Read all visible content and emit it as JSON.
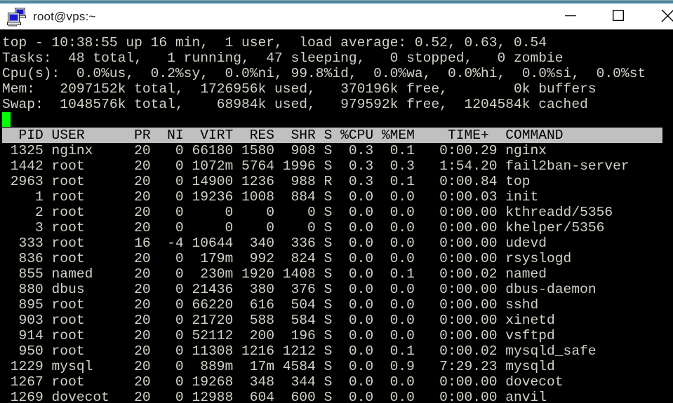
{
  "window": {
    "title": "root@vps:~",
    "icons": {
      "app": "putty-terminal-icon",
      "minimize": "minimize-icon",
      "maximize": "maximize-icon",
      "close": "close-icon"
    },
    "colors": {
      "accent_strip": "#4d87a4",
      "titlebar_bg": "#ffffff",
      "terminal_bg": "#000000",
      "terminal_fg": "#d2d2c8",
      "cursor": "#00ff00",
      "table_header_bg": "#c0c0c0",
      "table_header_fg": "#000000"
    }
  },
  "terminal": {
    "summary_lines": [
      "top - 10:38:55 up 16 min,  1 user,  load average: 0.52, 0.63, 0.54",
      "Tasks:  48 total,   1 running,  47 sleeping,   0 stopped,   0 zombie",
      "Cpu(s):  0.0%us,  0.2%sy,  0.0%ni, 99.8%id,  0.0%wa,  0.0%hi,  0.0%si,  0.0%st",
      "Mem:   2097152k total,  1726956k used,   370196k free,        0k buffers",
      "Swap:  1048576k total,    68984k used,   979592k free,  1204584k cached"
    ],
    "process_table": {
      "headers": [
        "PID",
        "USER",
        "PR",
        "NI",
        "VIRT",
        "RES",
        "SHR",
        "S",
        "%CPU",
        "%MEM",
        "TIME+",
        "COMMAND"
      ],
      "rows": [
        [
          "1325",
          "nginx",
          "20",
          "0",
          "66180",
          "1580",
          "908",
          "S",
          "0.3",
          "0.1",
          "0:00.29",
          "nginx"
        ],
        [
          "1442",
          "root",
          "20",
          "0",
          "1072m",
          "5764",
          "1996",
          "S",
          "0.3",
          "0.3",
          "1:54.20",
          "fail2ban-server"
        ],
        [
          "2963",
          "root",
          "20",
          "0",
          "14900",
          "1236",
          "988",
          "R",
          "0.3",
          "0.1",
          "0:00.84",
          "top"
        ],
        [
          "1",
          "root",
          "20",
          "0",
          "19236",
          "1008",
          "884",
          "S",
          "0.0",
          "0.0",
          "0:00.03",
          "init"
        ],
        [
          "2",
          "root",
          "20",
          "0",
          "0",
          "0",
          "0",
          "S",
          "0.0",
          "0.0",
          "0:00.00",
          "kthreadd/5356"
        ],
        [
          "3",
          "root",
          "20",
          "0",
          "0",
          "0",
          "0",
          "S",
          "0.0",
          "0.0",
          "0:00.00",
          "khelper/5356"
        ],
        [
          "333",
          "root",
          "16",
          "-4",
          "10644",
          "340",
          "336",
          "S",
          "0.0",
          "0.0",
          "0:00.00",
          "udevd"
        ],
        [
          "836",
          "root",
          "20",
          "0",
          "179m",
          "992",
          "824",
          "S",
          "0.0",
          "0.0",
          "0:00.00",
          "rsyslogd"
        ],
        [
          "855",
          "named",
          "20",
          "0",
          "230m",
          "1920",
          "1408",
          "S",
          "0.0",
          "0.1",
          "0:00.02",
          "named"
        ],
        [
          "880",
          "dbus",
          "20",
          "0",
          "21436",
          "380",
          "376",
          "S",
          "0.0",
          "0.0",
          "0:00.00",
          "dbus-daemon"
        ],
        [
          "895",
          "root",
          "20",
          "0",
          "66220",
          "616",
          "504",
          "S",
          "0.0",
          "0.0",
          "0:00.00",
          "sshd"
        ],
        [
          "903",
          "root",
          "20",
          "0",
          "21720",
          "588",
          "584",
          "S",
          "0.0",
          "0.0",
          "0:00.00",
          "xinetd"
        ],
        [
          "914",
          "root",
          "20",
          "0",
          "52112",
          "200",
          "196",
          "S",
          "0.0",
          "0.0",
          "0:00.00",
          "vsftpd"
        ],
        [
          "950",
          "root",
          "20",
          "0",
          "11308",
          "1216",
          "1212",
          "S",
          "0.0",
          "0.1",
          "0:00.02",
          "mysqld_safe"
        ],
        [
          "1229",
          "mysql",
          "20",
          "0",
          "889m",
          "17m",
          "4584",
          "S",
          "0.0",
          "0.9",
          "7:29.23",
          "mysqld"
        ],
        [
          "1267",
          "root",
          "20",
          "0",
          "19268",
          "348",
          "344",
          "S",
          "0.0",
          "0.0",
          "0:00.00",
          "dovecot"
        ],
        [
          "1269",
          "dovecot",
          "20",
          "0",
          "12988",
          "604",
          "600",
          "S",
          "0.0",
          "0.0",
          "0:00.00",
          "anvil"
        ]
      ]
    }
  }
}
